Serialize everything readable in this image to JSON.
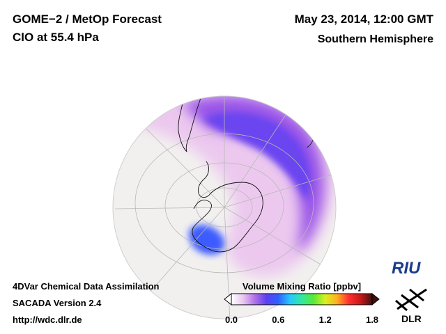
{
  "header": {
    "title": "GOME−2 / MetOp Forecast",
    "subtitle": "ClO at 55.4 hPa",
    "datetime": "May 23, 2014, 12:00 GMT",
    "hemisphere": "Southern Hemisphere"
  },
  "footer": {
    "line1": "4DVar Chemical Data Assimilation",
    "line2": "SACADA Version 2.4",
    "line3": "http://wdc.dlr.de"
  },
  "colorbar": {
    "title": "Volume Mixing Ratio [ppbv]",
    "ticks": [
      "0.0",
      "0.6",
      "1.2",
      "1.8"
    ],
    "range": [
      0.0,
      1.8
    ],
    "colors": [
      "#ffffff",
      "#e9c8f0",
      "#b070e8",
      "#5a3ff0",
      "#2f60ff",
      "#27c8ff",
      "#30e8a0",
      "#58e838",
      "#d8f020",
      "#ffb020",
      "#ff3030",
      "#c81818",
      "#401010"
    ]
  },
  "logos": {
    "riu": "RIU",
    "dlr": "DLR"
  },
  "map": {
    "projection": "orthographic",
    "background_color": "#f2f0ef",
    "coastline_color": "#111111",
    "grid_color": "#b8b8b8"
  }
}
